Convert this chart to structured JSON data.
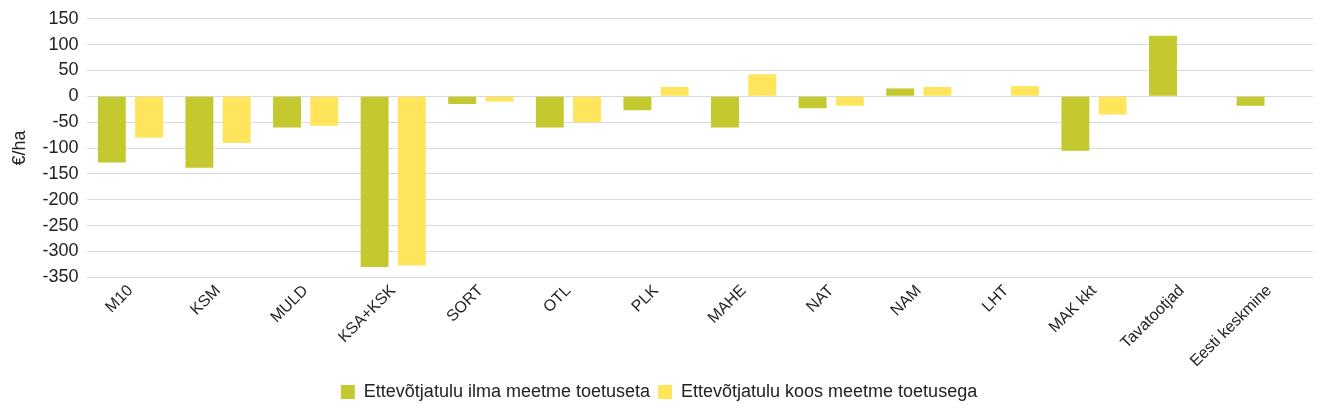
{
  "chart_data": {
    "type": "bar",
    "ylabel": "€/ha",
    "categories": [
      "M10",
      "KSM",
      "MULD",
      "KSA+KSK",
      "SORT",
      "OTL",
      "PLK",
      "MAHE",
      "NAT",
      "NAM",
      "LHT",
      "MAK kkt",
      "Tavatootjad",
      "Eesti keskmine"
    ],
    "series": [
      {
        "name": "Ettevõtjatulu ilma meetme toetuseta",
        "color": "#c3c92f",
        "values": [
          -128,
          -138,
          -60,
          -330,
          -15,
          -60,
          -27,
          -60,
          -23,
          15,
          null,
          -105,
          117,
          -18
        ]
      },
      {
        "name": "Ettevõtjatulu koos meetme toetusega",
        "color": "#ffe55c",
        "values": [
          -80,
          -90,
          -57,
          -327,
          -10,
          -50,
          18,
          43,
          -18,
          18,
          20,
          -35,
          null,
          null
        ]
      }
    ],
    "ylim": [
      -350,
      150
    ],
    "yticks": [
      150,
      100,
      50,
      0,
      -50,
      -100,
      -150,
      -200,
      -250,
      -300,
      -350
    ],
    "grid": "y",
    "legend": "bottom"
  }
}
